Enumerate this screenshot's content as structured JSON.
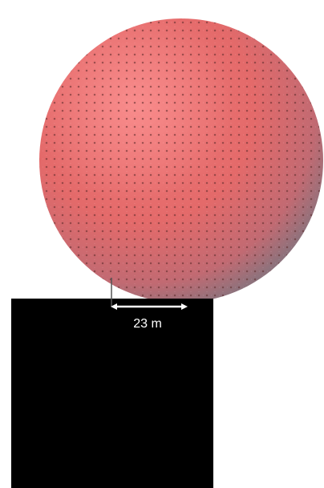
{
  "diagram": {
    "sphere": {
      "color": "#e85a5a",
      "shadow_color": "#8a6e78",
      "texture": "dot-grid"
    },
    "block": {
      "color": "#000000"
    },
    "measurement": {
      "value": 23,
      "unit": "m",
      "label": "23 m",
      "line_color": "#ffffff",
      "label_color": "#ffffff",
      "leader_color": "#555555"
    }
  }
}
